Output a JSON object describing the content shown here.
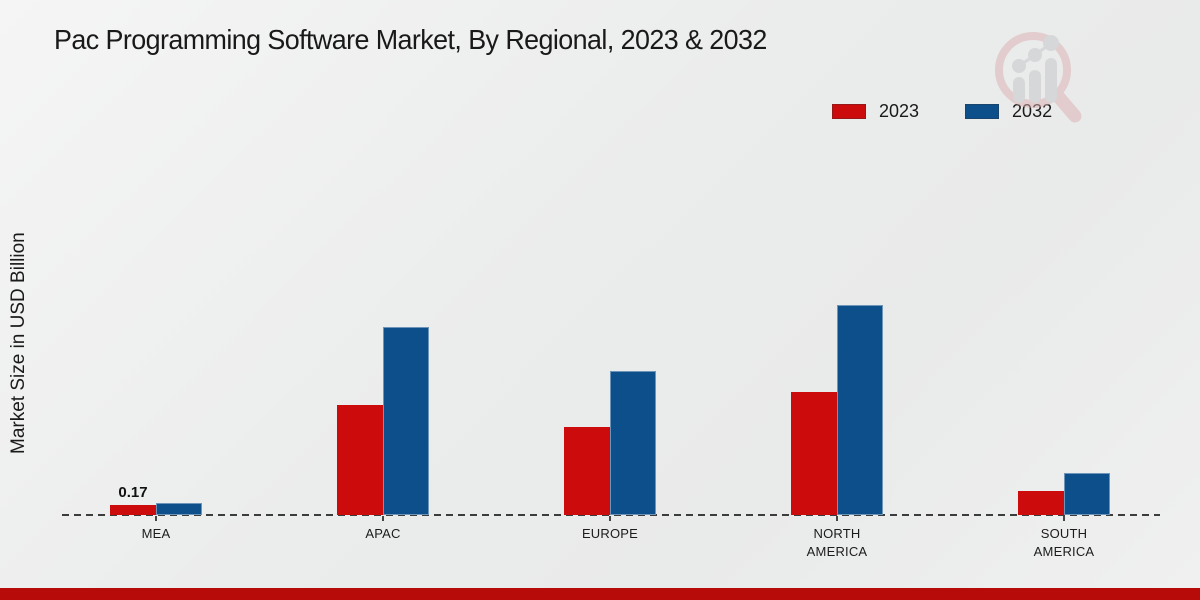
{
  "title": "Pac Programming Software Market, By Regional, 2023 & 2032",
  "y_axis_label": "Market Size in USD Billion",
  "legend": {
    "items": [
      {
        "label": "2023"
      },
      {
        "label": "2032"
      }
    ]
  },
  "colors": {
    "series_2023": "#cc0c0c",
    "series_2032": "#0d4f8b",
    "footer_bar": "#b60b08",
    "baseline": "#3c3c3c",
    "background": "#ececec"
  },
  "watermark_icon": "magnifier-bar-chart-logo",
  "chart_data": {
    "type": "bar",
    "title": "Pac Programming Software Market, By Regional, 2023 & 2032",
    "xlabel": "",
    "ylabel": "Market Size in USD Billion",
    "categories": [
      "MEA",
      "APAC",
      "EUROPE",
      "NORTH AMERICA",
      "SOUTH AMERICA"
    ],
    "category_lines": [
      [
        "MEA"
      ],
      [
        "APAC"
      ],
      [
        "EUROPE"
      ],
      [
        "NORTH",
        "AMERICA"
      ],
      [
        "SOUTH",
        "AMERICA"
      ]
    ],
    "series": [
      {
        "name": "2023",
        "color": "#cc0c0c",
        "values": [
          0.17,
          1.87,
          1.5,
          2.09,
          0.41
        ]
      },
      {
        "name": "2032",
        "color": "#0d4f8b",
        "values": [
          0.2,
          3.2,
          2.45,
          3.57,
          0.71
        ]
      }
    ],
    "ylim": [
      0,
      4
    ],
    "grid": false,
    "y_axis_ticks_visible": false,
    "baseline_style": "dashed",
    "legend_position": "top-right",
    "annotations": [
      {
        "category": "MEA",
        "series": "2023",
        "text": "0.17"
      }
    ]
  }
}
